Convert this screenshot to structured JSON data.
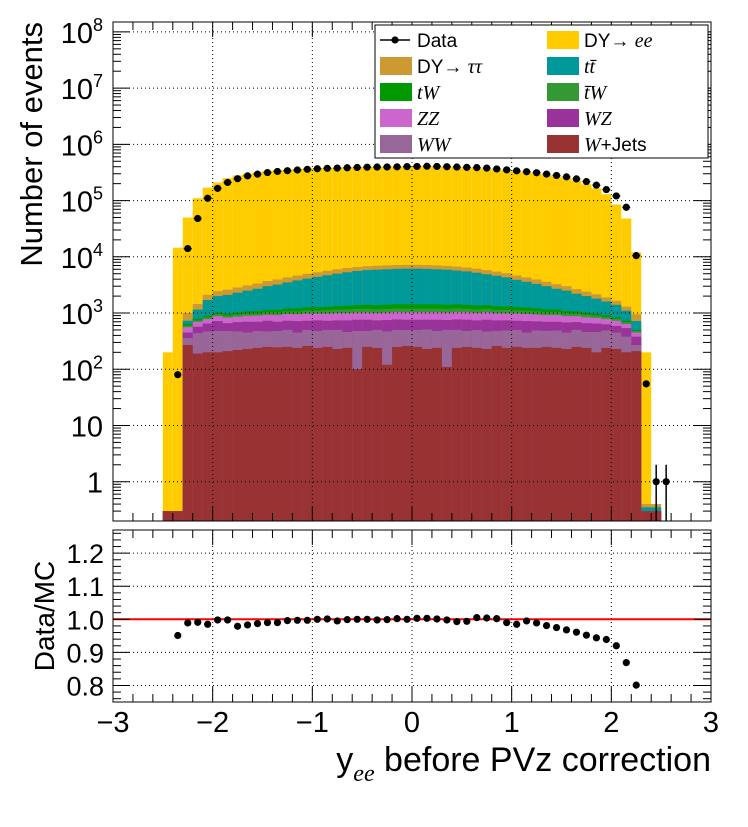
{
  "chart_data": [
    {
      "type": "stacked-histogram",
      "ylabel": "Number of events",
      "yscale": "log",
      "ylim": [
        0.2,
        150000000
      ],
      "xlim": [
        -3,
        3
      ],
      "grid": true,
      "legend_placement": "top-right",
      "yticks": [
        "1",
        "10",
        "10^2",
        "10^3",
        "10^4",
        "10^5",
        "10^6",
        "10^7",
        "10^8"
      ],
      "legend": [
        {
          "label": "Data",
          "marker": "point",
          "color": "#000000"
        },
        {
          "label": "DY→ ee",
          "prefix": "DY→ ",
          "math": "ee",
          "marker": "box",
          "color": "#ffcc00"
        },
        {
          "label": "DY→ ττ",
          "prefix": "DY→ ",
          "math": "ττ",
          "marker": "box",
          "color": "#cc9933"
        },
        {
          "label": "tt̄",
          "prefix": "",
          "math": "tt̄",
          "marker": "box",
          "color": "#009999"
        },
        {
          "label": "tW",
          "prefix": "",
          "math": "tW",
          "marker": "box",
          "color": "#009900"
        },
        {
          "label": "t̄W",
          "prefix": "",
          "math": "t̄W",
          "marker": "box",
          "color": "#339933"
        },
        {
          "label": "ZZ",
          "prefix": "",
          "math": "ZZ",
          "marker": "box",
          "color": "#cc66cc"
        },
        {
          "label": "WZ",
          "prefix": "",
          "math": "WZ",
          "marker": "box",
          "color": "#993399"
        },
        {
          "label": "WW",
          "prefix": "",
          "math": "WW",
          "marker": "box",
          "color": "#996699"
        },
        {
          "label": "W+Jets",
          "prefix": "",
          "math": "W",
          "suffix": "+Jets",
          "marker": "box",
          "color": "#993333"
        }
      ],
      "bin_edges": [
        -2.5,
        -2.4,
        -2.3,
        -2.2,
        -2.1,
        -2.0,
        -1.9,
        -1.8,
        -1.7,
        -1.6,
        -1.5,
        -1.4,
        -1.3,
        -1.2,
        -1.1,
        -1.0,
        -0.9,
        -0.8,
        -0.7,
        -0.6,
        -0.5,
        -0.4,
        -0.3,
        -0.2,
        -0.1,
        0.0,
        0.1,
        0.2,
        0.3,
        0.4,
        0.5,
        0.6,
        0.7,
        0.8,
        0.9,
        1.0,
        1.1,
        1.2,
        1.3,
        1.4,
        1.5,
        1.6,
        1.7,
        1.8,
        1.9,
        2.0,
        2.1,
        2.2,
        2.3,
        2.4,
        2.5
      ],
      "stack_order": [
        "W+Jets",
        "WW",
        "WZ",
        "ZZ",
        "t̄W",
        "tW",
        "tt̄",
        "DY→ ττ",
        "DY→ ee"
      ],
      "stack_cumulative_top": {
        "W+Jets": [
          0.3,
          0.3,
          270,
          190,
          200,
          200,
          210,
          220,
          230,
          240,
          250,
          245,
          250,
          240,
          260,
          240,
          250,
          230,
          240,
          100,
          250,
          240,
          120,
          250,
          260,
          250,
          230,
          240,
          110,
          240,
          250,
          240,
          230,
          260,
          240,
          250,
          240,
          240,
          250,
          240,
          230,
          250,
          240,
          200,
          240,
          230,
          200,
          210,
          0.3,
          0.3
        ],
        "WW": [
          0.3,
          0.3,
          360,
          440,
          470,
          480,
          480,
          470,
          450,
          480,
          470,
          480,
          500,
          450,
          500,
          480,
          500,
          500,
          460,
          480,
          480,
          500,
          470,
          500,
          500,
          500,
          510,
          480,
          500,
          500,
          480,
          500,
          470,
          480,
          490,
          500,
          450,
          490,
          480,
          490,
          450,
          500,
          460,
          460,
          490,
          450,
          380,
          270,
          0.3,
          0.3
        ],
        "WZ": [
          0.3,
          0.3,
          450,
          570,
          650,
          720,
          660,
          690,
          700,
          700,
          730,
          700,
          730,
          720,
          730,
          740,
          730,
          740,
          740,
          760,
          760,
          740,
          750,
          770,
          760,
          760,
          760,
          760,
          750,
          770,
          760,
          740,
          760,
          740,
          740,
          730,
          720,
          710,
          700,
          700,
          680,
          690,
          660,
          650,
          630,
          590,
          540,
          380,
          0.3,
          0.3
        ],
        "ZZ": [
          0.3,
          0.3,
          560,
          700,
          780,
          880,
          830,
          860,
          890,
          900,
          930,
          920,
          960,
          950,
          980,
          980,
          980,
          1000,
          1000,
          1020,
          1020,
          1000,
          1020,
          1040,
          1030,
          1030,
          1030,
          1030,
          1020,
          1040,
          1030,
          1000,
          1030,
          990,
          990,
          980,
          960,
          940,
          920,
          920,
          880,
          880,
          840,
          820,
          780,
          730,
          640,
          450,
          0.3,
          0.3
        ],
        "t̄W": [
          0.3,
          0.3,
          600,
          740,
          840,
          950,
          900,
          940,
          980,
          990,
          1030,
          1030,
          1070,
          1070,
          1110,
          1110,
          1120,
          1150,
          1160,
          1180,
          1190,
          1170,
          1190,
          1210,
          1200,
          1200,
          1200,
          1200,
          1190,
          1210,
          1190,
          1160,
          1190,
          1140,
          1140,
          1120,
          1100,
          1070,
          1040,
          1040,
          990,
          980,
          930,
          900,
          850,
          790,
          690,
          480,
          0.3,
          0.3
        ],
        "tW": [
          0.3,
          0.3,
          640,
          790,
          900,
          1020,
          970,
          1020,
          1070,
          1090,
          1140,
          1150,
          1200,
          1210,
          1260,
          1270,
          1290,
          1330,
          1350,
          1380,
          1400,
          1380,
          1410,
          1440,
          1430,
          1430,
          1430,
          1430,
          1410,
          1430,
          1400,
          1360,
          1380,
          1320,
          1310,
          1280,
          1250,
          1210,
          1170,
          1160,
          1090,
          1070,
          1010,
          970,
          910,
          840,
          730,
          500,
          0.3,
          0.3
        ],
        "tt̄": [
          0.3,
          0.3,
          730,
          1150,
          1700,
          2000,
          2100,
          2300,
          2500,
          2700,
          3000,
          3200,
          3500,
          3800,
          4100,
          4400,
          4700,
          5000,
          5300,
          5600,
          5800,
          5900,
          6000,
          6100,
          6150,
          6150,
          6100,
          6000,
          5900,
          5700,
          5500,
          5200,
          4900,
          4600,
          4300,
          3900,
          3600,
          3300,
          3000,
          2700,
          2500,
          2200,
          2000,
          1800,
          1600,
          1400,
          1100,
          720,
          0.35,
          0.35
        ],
        "DY→ ττ": [
          0.3,
          0.3,
          1000,
          1450,
          2100,
          2450,
          2600,
          2850,
          3100,
          3350,
          3700,
          3950,
          4300,
          4650,
          5000,
          5300,
          5650,
          6000,
          6300,
          6600,
          6800,
          6950,
          7050,
          7150,
          7200,
          7200,
          7150,
          7050,
          6900,
          6700,
          6450,
          6150,
          5800,
          5450,
          5100,
          4650,
          4300,
          3950,
          3600,
          3250,
          3000,
          2650,
          2400,
          2150,
          1900,
          1650,
          1300,
          950,
          0.4,
          0.4
        ],
        "DY→ ee": [
          200,
          14500,
          50000,
          110000,
          170000,
          210000,
          250000,
          280000,
          300000,
          320000,
          335000,
          345000,
          355000,
          365000,
          370000,
          375000,
          380000,
          385000,
          390000,
          393000,
          395000,
          397000,
          398000,
          400000,
          402000,
          406000,
          408000,
          405000,
          398000,
          392000,
          388000,
          378000,
          365000,
          352000,
          340000,
          330000,
          318000,
          300000,
          285000,
          270000,
          250000,
          225000,
          195000,
          165000,
          130000,
          85000,
          48000,
          12000,
          200,
          0.3
        ]
      },
      "data_points": {
        "x": [
          -2.35,
          -2.25,
          -2.15,
          -2.05,
          -1.95,
          -1.85,
          -1.75,
          -1.65,
          -1.55,
          -1.45,
          -1.35,
          -1.25,
          -1.15,
          -1.05,
          -0.95,
          -0.85,
          -0.75,
          -0.65,
          -0.55,
          -0.45,
          -0.35,
          -0.25,
          -0.15,
          -0.05,
          0.05,
          0.15,
          0.25,
          0.35,
          0.45,
          0.55,
          0.65,
          0.75,
          0.85,
          0.95,
          1.05,
          1.15,
          1.25,
          1.35,
          1.45,
          1.55,
          1.65,
          1.75,
          1.85,
          1.95,
          2.05,
          2.15,
          2.25,
          2.35,
          2.45,
          2.55
        ],
        "y": [
          80,
          14000,
          48000,
          110000,
          165000,
          210000,
          245000,
          275000,
          295000,
          315000,
          330000,
          340000,
          350000,
          360000,
          368000,
          375000,
          378000,
          383000,
          388000,
          392000,
          395000,
          396000,
          398000,
          402000,
          405000,
          408000,
          405000,
          400000,
          395000,
          390000,
          386000,
          378000,
          365000,
          352000,
          338000,
          326000,
          313000,
          296000,
          280000,
          264000,
          243000,
          218000,
          188000,
          157000,
          121000,
          76000,
          10500,
          55,
          1,
          1
        ]
      }
    },
    {
      "type": "scatter",
      "ylabel": "Data/MC",
      "xlabel_main": "y",
      "xlabel_sub": "ee",
      "xlabel_rest": " before PVz correction",
      "xlim": [
        -3,
        3
      ],
      "ylim": [
        0.75,
        1.27
      ],
      "grid": true,
      "reference_line": 1.0,
      "xticks": [
        "−3",
        "−2",
        "−1",
        "0",
        "1",
        "2",
        "3"
      ],
      "yticks": [
        "0.8",
        "0.9",
        "1.0",
        "1.1",
        "1.2"
      ],
      "x": [
        -2.35,
        -2.25,
        -2.15,
        -2.05,
        -1.95,
        -1.85,
        -1.75,
        -1.65,
        -1.55,
        -1.45,
        -1.35,
        -1.25,
        -1.15,
        -1.05,
        -0.95,
        -0.85,
        -0.75,
        -0.65,
        -0.55,
        -0.45,
        -0.35,
        -0.25,
        -0.15,
        -0.05,
        0.05,
        0.15,
        0.25,
        0.35,
        0.45,
        0.55,
        0.65,
        0.75,
        0.85,
        0.95,
        1.05,
        1.15,
        1.25,
        1.35,
        1.45,
        1.55,
        1.65,
        1.75,
        1.85,
        1.95,
        2.05,
        2.15,
        2.25
      ],
      "y": [
        0.951,
        0.989,
        0.991,
        0.985,
        0.998,
        0.998,
        0.979,
        0.983,
        0.987,
        0.99,
        0.99,
        0.996,
        0.997,
        0.997,
        1.0,
        1.001,
        0.995,
        0.999,
        1.0,
        1.0,
        0.998,
        0.999,
        1.002,
        1.0,
        1.003,
        1.003,
        1.001,
        0.998,
        0.993,
        0.994,
        1.005,
        1.004,
        1.002,
        0.99,
        0.985,
        0.995,
        0.989,
        0.981,
        0.975,
        0.968,
        0.961,
        0.952,
        0.944,
        0.939,
        0.92,
        0.869,
        0.801
      ],
      "errors": [
        0.01,
        0.006,
        0.005,
        0.004,
        0.004,
        0.004,
        0.004,
        0.004,
        0.004,
        0.004,
        0.004,
        0.004,
        0.004,
        0.004,
        0.004,
        0.004,
        0.004,
        0.004,
        0.004,
        0.004,
        0.004,
        0.004,
        0.004,
        0.004,
        0.004,
        0.004,
        0.004,
        0.004,
        0.004,
        0.004,
        0.004,
        0.004,
        0.004,
        0.004,
        0.004,
        0.004,
        0.004,
        0.004,
        0.004,
        0.004,
        0.004,
        0.004,
        0.004,
        0.004,
        0.004,
        0.005,
        0.008
      ],
      "line_color": "#ff0000"
    }
  ]
}
